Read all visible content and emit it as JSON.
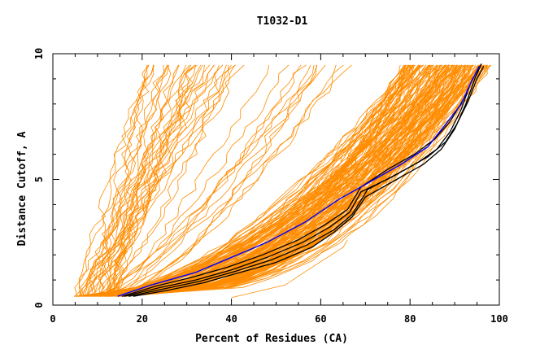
{
  "chart_data": {
    "type": "line",
    "title": "T1032-D1",
    "xlabel": "Percent of Residues (CA)",
    "ylabel": "Distance Cutoff, A",
    "xlim": [
      0,
      100
    ],
    "ylim": [
      0,
      10
    ],
    "xticks": [
      0,
      20,
      40,
      60,
      80,
      100
    ],
    "yticks": [
      0,
      5,
      10
    ],
    "grid": false,
    "legend": "none",
    "colors": {
      "bundle": "#ff8c00",
      "highlight": "#0000ff",
      "reference": "#000000",
      "frame": "#000000"
    },
    "series": [
      {
        "role": "highlight",
        "x": [
          14.5,
          22,
          32,
          40,
          48,
          56.5,
          64,
          72,
          78,
          84,
          88,
          91.5,
          93.5,
          95.5
        ],
        "y": [
          0.35,
          0.8,
          1.3,
          1.9,
          2.5,
          3.3,
          4.2,
          5.0,
          5.6,
          6.3,
          7.2,
          8.0,
          8.8,
          9.5
        ]
      },
      {
        "role": "reference",
        "x": [
          16,
          24,
          32,
          40,
          48,
          56,
          62,
          66.5,
          69,
          76,
          82,
          86,
          89,
          91.5,
          93.5,
          95.5
        ],
        "y": [
          0.35,
          0.7,
          1.0,
          1.4,
          1.9,
          2.5,
          3.1,
          3.7,
          4.5,
          5.1,
          5.7,
          6.2,
          6.9,
          7.8,
          8.8,
          9.5
        ]
      },
      {
        "role": "reference",
        "x": [
          18,
          26,
          34,
          42,
          50,
          58,
          63,
          67,
          70,
          77,
          83,
          87,
          90,
          92.5,
          94.5,
          96
        ],
        "y": [
          0.35,
          0.6,
          0.9,
          1.3,
          1.7,
          2.3,
          2.9,
          3.5,
          4.3,
          5.0,
          5.6,
          6.2,
          7.0,
          8.0,
          9.0,
          9.6
        ]
      },
      {
        "role": "reference",
        "x": [
          17,
          25,
          33,
          41,
          49,
          57,
          63,
          67,
          70.5,
          78,
          84,
          88,
          90.5,
          93,
          95,
          96.5
        ],
        "y": [
          0.35,
          0.65,
          0.95,
          1.35,
          1.8,
          2.4,
          3.0,
          3.6,
          4.6,
          5.3,
          5.9,
          6.5,
          7.2,
          8.1,
          9.0,
          9.5
        ]
      },
      {
        "role": "reference",
        "x": [
          15.5,
          23,
          31,
          39,
          47,
          55,
          61,
          66,
          69,
          75,
          81,
          85.5,
          89,
          92,
          94,
          96
        ],
        "y": [
          0.35,
          0.75,
          1.1,
          1.5,
          2.0,
          2.6,
          3.2,
          3.8,
          4.7,
          5.4,
          6.0,
          6.6,
          7.3,
          8.2,
          9.0,
          9.6
        ]
      }
    ]
  }
}
